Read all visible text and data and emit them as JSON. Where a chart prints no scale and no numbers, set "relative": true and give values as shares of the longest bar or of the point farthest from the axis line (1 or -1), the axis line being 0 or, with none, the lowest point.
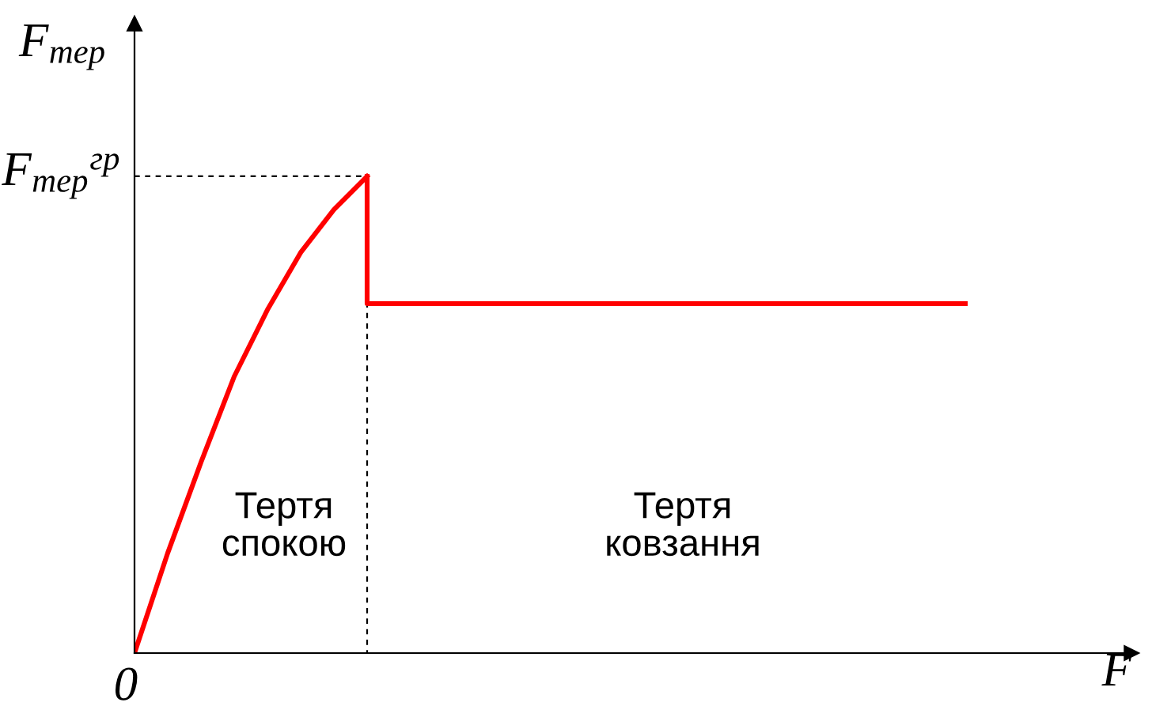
{
  "chart_data": {
    "type": "line",
    "relative": true,
    "xlabel": "F",
    "ylabel": "F$_{тер}$",
    "categories": [
      null,
      null,
      null,
      null,
      null,
      null,
      null,
      null,
      null,
      null,
      null,
      null,
      null,
      null,
      null,
      null,
      null,
      null,
      null,
      null,
      null,
      null,
      null,
      null,
      null,
      null,
      null,
      null,
      null,
      null,
      null
    ],
    "series": [
      {
        "color": "#ff0000",
        "values": [
          0,
          0.21,
          0.4,
          0.58,
          0.72,
          0.84,
          0.93,
          1.0,
          null,
          null,
          null,
          null,
          null,
          null,
          null,
          null,
          null,
          null,
          null,
          null,
          null,
          null,
          null,
          null,
          null,
          null,
          null,
          null,
          null,
          null,
          null
        ]
      },
      {
        "type": "step",
        "color": "#ff0000",
        "values": [
          null,
          null,
          null,
          null,
          null,
          null,
          null,
          1.0,
          0.733,
          0.733,
          0.733,
          0.733,
          0.733,
          0.733,
          0.733,
          0.733,
          0.733,
          0.733,
          0.733,
          0.733,
          0.733,
          0.733,
          0.733,
          0.733,
          0.733,
          0.733,
          null,
          null,
          null,
          null,
          null
        ]
      },
      {
        "type": "step",
        "color": "#000000",
        "line_style": "dashed",
        "values": [
          1,
          1,
          1,
          1,
          1,
          1,
          1,
          1,
          0,
          null,
          null,
          null,
          null,
          null,
          null,
          null,
          null,
          null,
          null,
          null,
          null,
          null,
          null,
          null,
          null,
          null,
          null,
          null,
          null,
          null,
          null
        ]
      }
    ],
    "annotations": [
      "F$_{тер}$$^{гр}$",
      "0",
      "Тертя\nспокою",
      "Тертя\nковзання"
    ]
  }
}
